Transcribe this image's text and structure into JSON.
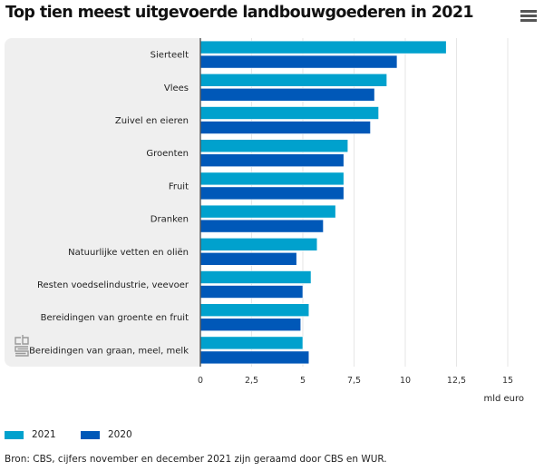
{
  "title": "Top tien meest uitgevoerde landbouwgoederen in 2021",
  "menu_icon": "hamburger-menu-icon",
  "logo": "cbs-logo-icon",
  "source": "Bron: CBS, cijfers november en december 2021 zijn geraamd door CBS en WUR.",
  "chart_data": {
    "type": "bar",
    "orientation": "horizontal",
    "title": "Top tien meest uitgevoerde landbouwgoederen in 2021",
    "xlabel": "mld euro",
    "ylabel": "",
    "categories": [
      "Sierteelt",
      "Vlees",
      "Zuivel en eieren",
      "Groenten",
      "Fruit",
      "Dranken",
      "Natuurlijke vetten en oliën",
      "Resten voedselindustrie, veevoer",
      "Bereidingen van groente en fruit",
      "Bereidingen van graan, meel, melk"
    ],
    "series": [
      {
        "name": "2021",
        "color": "#00a1cd",
        "values": [
          12.0,
          9.1,
          8.7,
          7.2,
          7.0,
          6.6,
          5.7,
          5.4,
          5.3,
          5.0
        ]
      },
      {
        "name": "2020",
        "color": "#0058b8",
        "values": [
          9.6,
          8.5,
          8.3,
          7.0,
          7.0,
          6.0,
          4.7,
          5.0,
          4.9,
          5.3
        ]
      }
    ],
    "xlim": [
      0,
      15
    ],
    "xticks": [
      0,
      2.5,
      5,
      7.5,
      10,
      12.5,
      15
    ],
    "xtick_labels": [
      "0",
      "2,5",
      "5",
      "7,5",
      "10",
      "12,5",
      "15"
    ],
    "grid": true,
    "legend_position": "bottom-left"
  }
}
